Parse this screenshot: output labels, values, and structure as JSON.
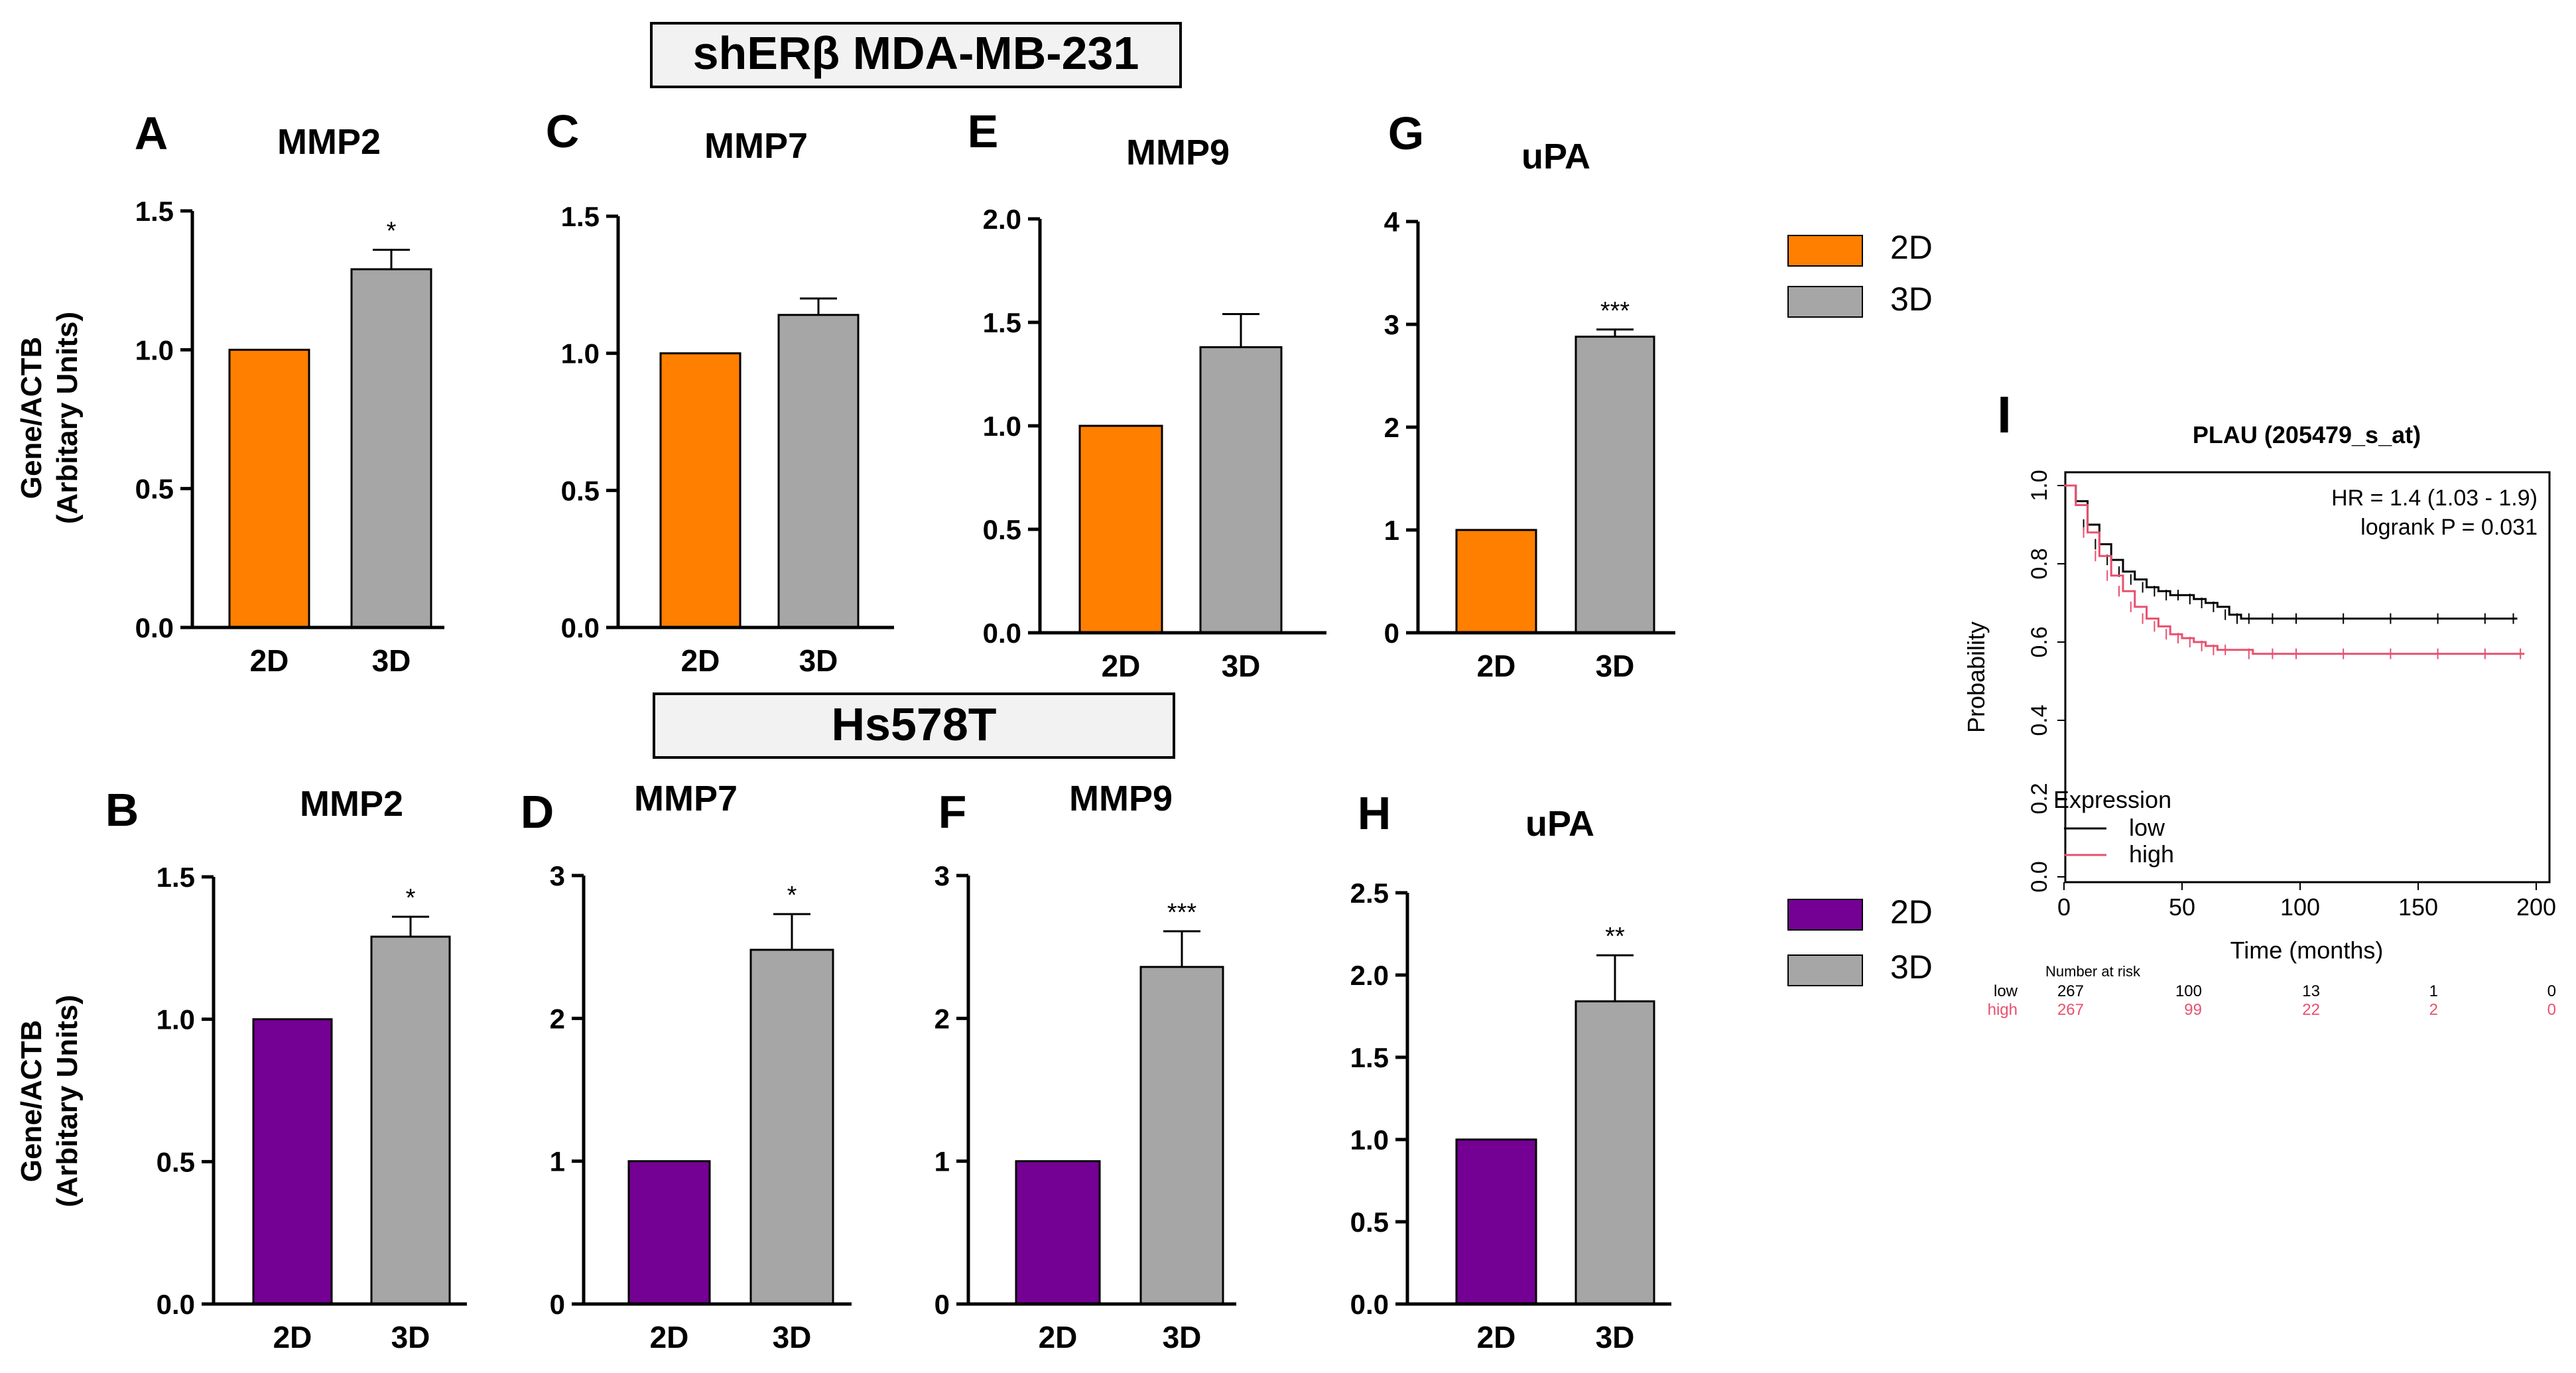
{
  "header_top": "shERβ MDA-MB-231",
  "header_mid": "Hs578T",
  "ylabel_line1": "Gene/ACTB",
  "ylabel_line2": "(Arbitary Units)",
  "colors": {
    "c2d_top": "#ff7f00",
    "c2d_bottom": "#750094",
    "c3d": "#a6a6a6"
  },
  "legend_top": [
    {
      "label": "2D",
      "color": "#ff7f00"
    },
    {
      "label": "3D",
      "color": "#a6a6a6"
    }
  ],
  "legend_bottom": [
    {
      "label": "2D",
      "color": "#750094"
    },
    {
      "label": "3D",
      "color": "#a6a6a6"
    }
  ],
  "chart_data": [
    {
      "type": "bar",
      "letter": "A",
      "title": "MMP2",
      "categories": [
        "2D",
        "3D"
      ],
      "values": [
        1.0,
        1.29
      ],
      "errors": [
        0,
        0.07
      ],
      "sig": [
        "",
        "*"
      ],
      "ylim": [
        0,
        1.5
      ],
      "yticks": [
        "0.0",
        "0.5",
        "1.0",
        "1.5"
      ],
      "ylabel": "Gene/ACTB (Arbitary Units)"
    },
    {
      "type": "bar",
      "letter": "C",
      "title": "MMP7",
      "categories": [
        "2D",
        "3D"
      ],
      "values": [
        1.0,
        1.14
      ],
      "errors": [
        0,
        0.06
      ],
      "sig": [
        "",
        ""
      ],
      "ylim": [
        0,
        1.5
      ],
      "yticks": [
        "0.0",
        "0.5",
        "1.0",
        "1.5"
      ]
    },
    {
      "type": "bar",
      "letter": "E",
      "title": "MMP9",
      "categories": [
        "2D",
        "3D"
      ],
      "values": [
        1.0,
        1.38
      ],
      "errors": [
        0,
        0.16
      ],
      "sig": [
        "",
        ""
      ],
      "ylim": [
        0,
        2.0
      ],
      "yticks": [
        "0.0",
        "0.5",
        "1.0",
        "1.5",
        "2.0"
      ]
    },
    {
      "type": "bar",
      "letter": "G",
      "title": "uPA",
      "categories": [
        "2D",
        "3D"
      ],
      "values": [
        1.0,
        2.88
      ],
      "errors": [
        0,
        0.07
      ],
      "sig": [
        "",
        "***"
      ],
      "ylim": [
        0,
        4
      ],
      "yticks": [
        "0",
        "1",
        "2",
        "3",
        "4"
      ]
    },
    {
      "type": "bar",
      "letter": "B",
      "title": "MMP2",
      "categories": [
        "2D",
        "3D"
      ],
      "values": [
        1.0,
        1.29
      ],
      "errors": [
        0,
        0.07
      ],
      "sig": [
        "",
        "*"
      ],
      "ylim": [
        0,
        1.5
      ],
      "yticks": [
        "0.0",
        "0.5",
        "1.0",
        "1.5"
      ],
      "ylabel": "Gene/ACTB (Arbitary Units)"
    },
    {
      "type": "bar",
      "letter": "D",
      "title": "MMP7",
      "categories": [
        "2D",
        "3D"
      ],
      "values": [
        1.0,
        2.48
      ],
      "errors": [
        0,
        0.25
      ],
      "sig": [
        "",
        "*"
      ],
      "ylim": [
        0,
        3
      ],
      "yticks": [
        "0",
        "1",
        "2",
        "3"
      ]
    },
    {
      "type": "bar",
      "letter": "F",
      "title": "MMP9",
      "categories": [
        "2D",
        "3D"
      ],
      "values": [
        1.0,
        2.36
      ],
      "errors": [
        0,
        0.25
      ],
      "sig": [
        "",
        "***"
      ],
      "ylim": [
        0,
        3
      ],
      "yticks": [
        "0",
        "1",
        "2",
        "3"
      ]
    },
    {
      "type": "bar",
      "letter": "H",
      "title": "uPA",
      "categories": [
        "2D",
        "3D"
      ],
      "values": [
        1.0,
        1.84
      ],
      "errors": [
        0,
        0.28
      ],
      "sig": [
        "",
        "**"
      ],
      "ylim": [
        0,
        2.5
      ],
      "yticks": [
        "0.0",
        "0.5",
        "1.0",
        "1.5",
        "2.0",
        "2.5"
      ]
    },
    {
      "type": "line",
      "letter": "I",
      "title": "PLAU (205479_s_at)",
      "xlabel": "Time (months)",
      "ylabel": "Probability",
      "xlim": [
        0,
        200
      ],
      "ylim": [
        0,
        1.0
      ],
      "xticks": [
        "0",
        "50",
        "100",
        "150",
        "200"
      ],
      "yticks": [
        "0.0",
        "0.2",
        "0.4",
        "0.6",
        "0.8",
        "1.0"
      ],
      "annotation": [
        "HR = 1.4 (1.03 - 1.9)",
        "logrank P = 0.031"
      ],
      "legend_title": "Expression",
      "series": [
        {
          "name": "low",
          "color": "#000000",
          "x": [
            0,
            5,
            10,
            15,
            20,
            25,
            30,
            35,
            40,
            45,
            50,
            55,
            60,
            65,
            70,
            75,
            80,
            90,
            100,
            120,
            140,
            160,
            180,
            192
          ],
          "y": [
            1.0,
            0.96,
            0.9,
            0.85,
            0.81,
            0.78,
            0.76,
            0.74,
            0.73,
            0.72,
            0.72,
            0.71,
            0.7,
            0.69,
            0.67,
            0.66,
            0.66,
            0.66,
            0.66,
            0.66,
            0.66,
            0.66,
            0.66,
            0.66
          ]
        },
        {
          "name": "high",
          "color": "#e8506f",
          "x": [
            0,
            5,
            10,
            15,
            20,
            25,
            30,
            35,
            40,
            45,
            50,
            55,
            60,
            65,
            70,
            80,
            90,
            100,
            120,
            140,
            160,
            180,
            195
          ],
          "y": [
            1.0,
            0.95,
            0.88,
            0.82,
            0.77,
            0.73,
            0.69,
            0.66,
            0.64,
            0.62,
            0.61,
            0.6,
            0.59,
            0.58,
            0.58,
            0.57,
            0.57,
            0.57,
            0.57,
            0.57,
            0.57,
            0.57,
            0.57
          ]
        }
      ],
      "risk_table": {
        "title": "Number at risk",
        "rows": [
          {
            "label": "low",
            "color": "#000000",
            "values": [
              "267",
              "100",
              "13",
              "1",
              "0"
            ]
          },
          {
            "label": "high",
            "color": "#e8506f",
            "values": [
              "267",
              "99",
              "22",
              "2",
              "0"
            ]
          }
        ]
      }
    }
  ]
}
